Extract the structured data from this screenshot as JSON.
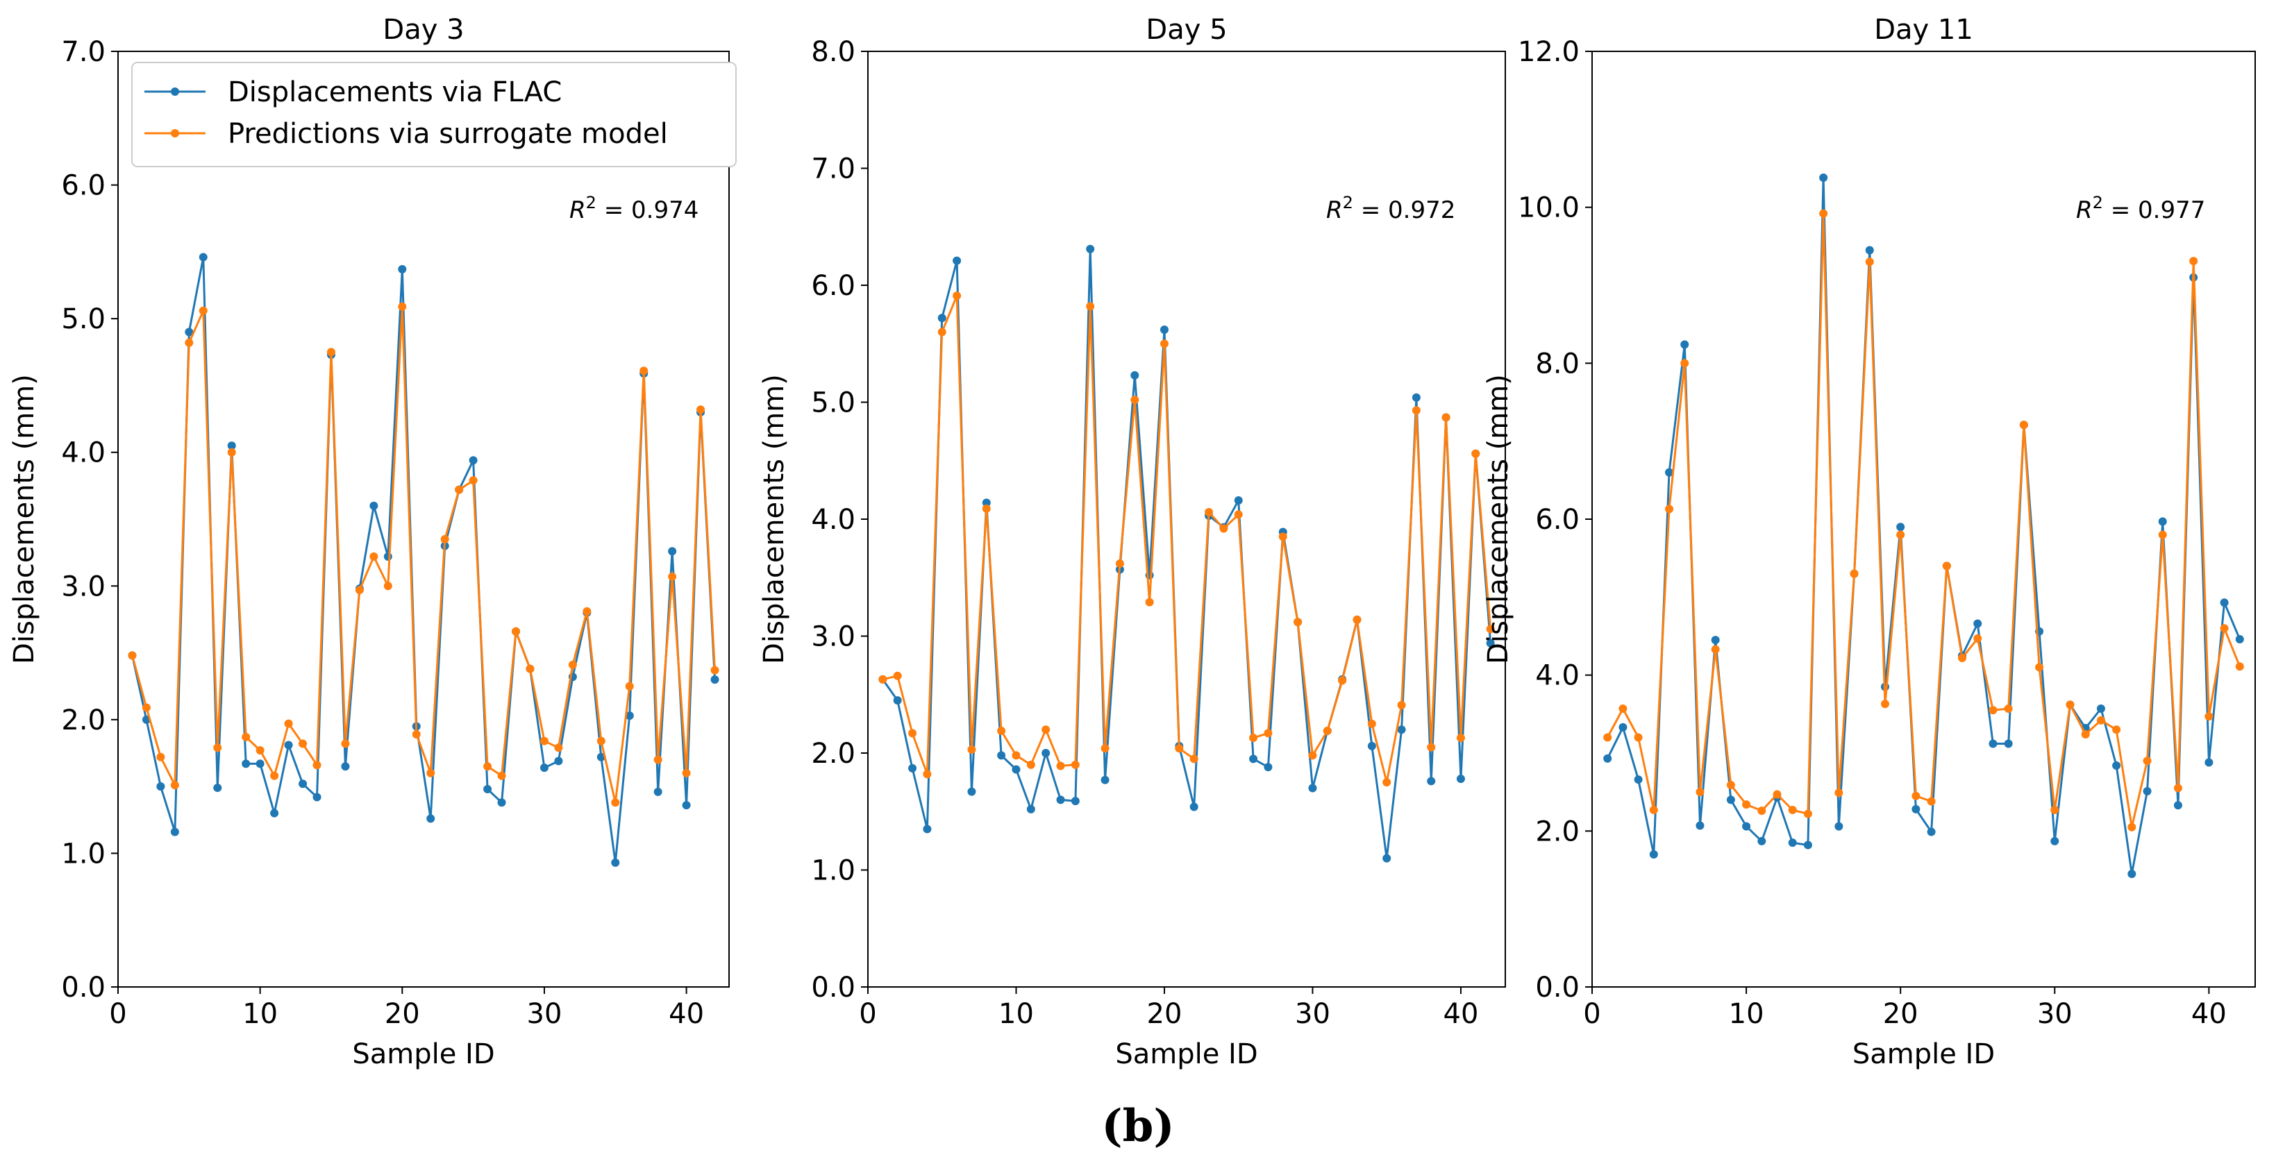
{
  "figure_label": "(b)",
  "colors": {
    "flac": "#1f77b4",
    "surrogate": "#ff7f0e"
  },
  "chart_data": [
    {
      "type": "line",
      "title": "Day 3",
      "xlabel": "Sample ID",
      "ylabel": "Displacements (mm)",
      "xlim": [
        0,
        43
      ],
      "ylim": [
        0,
        7
      ],
      "xticks": [
        0,
        10,
        20,
        30,
        40
      ],
      "yticks": [
        0,
        1,
        2,
        3,
        4,
        5,
        6,
        7
      ],
      "ytick_labels": [
        "0.0",
        "1.0",
        "2.0",
        "3.0",
        "4.0",
        "5.0",
        "6.0",
        "7.0"
      ],
      "annotation": {
        "prefix": "R",
        "superscript": "2",
        "suffix": " = 0.974"
      },
      "legend_position": "upper-left",
      "x": [
        1,
        2,
        3,
        4,
        5,
        6,
        7,
        8,
        9,
        10,
        11,
        12,
        13,
        14,
        15,
        16,
        17,
        18,
        19,
        20,
        21,
        22,
        23,
        24,
        25,
        26,
        27,
        28,
        29,
        30,
        31,
        32,
        33,
        34,
        35,
        36,
        37,
        38,
        39,
        40,
        41,
        42
      ],
      "series": [
        {
          "name": "Displacements via FLAC",
          "values": [
            2.48,
            2.0,
            1.5,
            1.16,
            4.9,
            5.46,
            1.49,
            4.05,
            1.67,
            1.67,
            1.3,
            1.81,
            1.52,
            1.42,
            4.73,
            1.65,
            2.98,
            3.6,
            3.22,
            5.37,
            1.95,
            1.26,
            3.3,
            3.72,
            3.94,
            1.48,
            1.38,
            2.66,
            2.38,
            1.64,
            1.69,
            2.32,
            2.8,
            1.72,
            0.93,
            2.03,
            4.59,
            1.46,
            3.26,
            1.36,
            4.3,
            2.3
          ]
        },
        {
          "name": "Predictions via surrogate model",
          "values": [
            2.48,
            2.09,
            1.72,
            1.51,
            4.82,
            5.06,
            1.79,
            4.0,
            1.87,
            1.77,
            1.58,
            1.97,
            1.82,
            1.66,
            4.75,
            1.82,
            2.97,
            3.22,
            3.0,
            5.09,
            1.89,
            1.6,
            3.35,
            3.72,
            3.79,
            1.65,
            1.58,
            2.66,
            2.38,
            1.84,
            1.79,
            2.41,
            2.81,
            1.84,
            1.38,
            2.25,
            4.61,
            1.7,
            3.07,
            1.6,
            4.32,
            2.37
          ]
        }
      ]
    },
    {
      "type": "line",
      "title": "Day 5",
      "xlabel": "Sample ID",
      "ylabel": "Displacements (mm)",
      "xlim": [
        0,
        43
      ],
      "ylim": [
        0,
        8
      ],
      "xticks": [
        0,
        10,
        20,
        30,
        40
      ],
      "yticks": [
        0,
        1,
        2,
        3,
        4,
        5,
        6,
        7,
        8
      ],
      "ytick_labels": [
        "0.0",
        "1.0",
        "2.0",
        "3.0",
        "4.0",
        "5.0",
        "6.0",
        "7.0",
        "8.0"
      ],
      "annotation": {
        "prefix": "R",
        "superscript": "2",
        "suffix": " = 0.972"
      },
      "x": [
        1,
        2,
        3,
        4,
        5,
        6,
        7,
        8,
        9,
        10,
        11,
        12,
        13,
        14,
        15,
        16,
        17,
        18,
        19,
        20,
        21,
        22,
        23,
        24,
        25,
        26,
        27,
        28,
        29,
        30,
        31,
        32,
        33,
        34,
        35,
        36,
        37,
        38,
        39,
        40,
        41,
        42
      ],
      "series": [
        {
          "name": "Displacements via FLAC",
          "values": [
            2.63,
            2.45,
            1.87,
            1.35,
            5.72,
            6.21,
            1.67,
            4.14,
            1.98,
            1.86,
            1.52,
            2.0,
            1.6,
            1.59,
            6.31,
            1.77,
            3.57,
            5.23,
            3.52,
            5.62,
            2.06,
            1.54,
            4.03,
            3.93,
            4.16,
            1.95,
            1.88,
            3.89,
            3.12,
            1.7,
            2.19,
            2.63,
            3.14,
            2.06,
            1.1,
            2.2,
            5.04,
            1.76,
            4.87,
            1.78,
            4.56,
            2.94
          ]
        },
        {
          "name": "Predictions via surrogate model",
          "values": [
            2.63,
            2.66,
            2.17,
            1.82,
            5.6,
            5.91,
            2.03,
            4.09,
            2.19,
            1.98,
            1.9,
            2.2,
            1.89,
            1.9,
            5.82,
            2.04,
            3.62,
            5.02,
            3.29,
            5.5,
            2.04,
            1.95,
            4.06,
            3.92,
            4.04,
            2.13,
            2.17,
            3.85,
            3.12,
            1.98,
            2.19,
            2.62,
            3.14,
            2.25,
            1.75,
            2.41,
            4.93,
            2.05,
            4.87,
            2.13,
            4.56,
            3.06
          ]
        }
      ]
    },
    {
      "type": "line",
      "title": "Day 11",
      "xlabel": "Sample ID",
      "ylabel": "Displacements (mm)",
      "xlim": [
        0,
        43
      ],
      "ylim": [
        0,
        12
      ],
      "xticks": [
        0,
        10,
        20,
        30,
        40
      ],
      "yticks": [
        0,
        2,
        4,
        6,
        8,
        10,
        12
      ],
      "ytick_labels": [
        "0.0",
        "2.0",
        "4.0",
        "6.0",
        "8.0",
        "10.0",
        "12.0"
      ],
      "annotation": {
        "prefix": "R",
        "superscript": "2",
        "suffix": " = 0.977"
      },
      "x": [
        1,
        2,
        3,
        4,
        5,
        6,
        7,
        8,
        9,
        10,
        11,
        12,
        13,
        14,
        15,
        16,
        17,
        18,
        19,
        20,
        21,
        22,
        23,
        24,
        25,
        26,
        27,
        28,
        29,
        30,
        31,
        32,
        33,
        34,
        35,
        36,
        37,
        38,
        39,
        40,
        41,
        42
      ],
      "series": [
        {
          "name": "Displacements via FLAC",
          "values": [
            2.93,
            3.33,
            2.66,
            1.7,
            6.6,
            8.24,
            2.07,
            4.45,
            2.4,
            2.06,
            1.87,
            2.43,
            1.85,
            1.82,
            10.38,
            2.06,
            5.3,
            9.45,
            3.85,
            5.9,
            2.28,
            1.99,
            5.4,
            4.25,
            4.66,
            3.12,
            3.12,
            7.21,
            4.56,
            1.87,
            3.62,
            3.32,
            3.57,
            2.84,
            1.45,
            2.51,
            5.97,
            2.33,
            9.1,
            2.88,
            4.93,
            4.46
          ]
        },
        {
          "name": "Predictions via surrogate model",
          "values": [
            3.2,
            3.57,
            3.2,
            2.27,
            6.13,
            8.0,
            2.5,
            4.33,
            2.59,
            2.34,
            2.26,
            2.47,
            2.27,
            2.22,
            9.92,
            2.49,
            5.3,
            9.3,
            3.63,
            5.8,
            2.45,
            2.38,
            5.4,
            4.22,
            4.47,
            3.55,
            3.57,
            7.21,
            4.1,
            2.27,
            3.62,
            3.24,
            3.42,
            3.3,
            2.05,
            2.9,
            5.8,
            2.55,
            9.31,
            3.47,
            4.6,
            4.11
          ]
        }
      ]
    }
  ]
}
